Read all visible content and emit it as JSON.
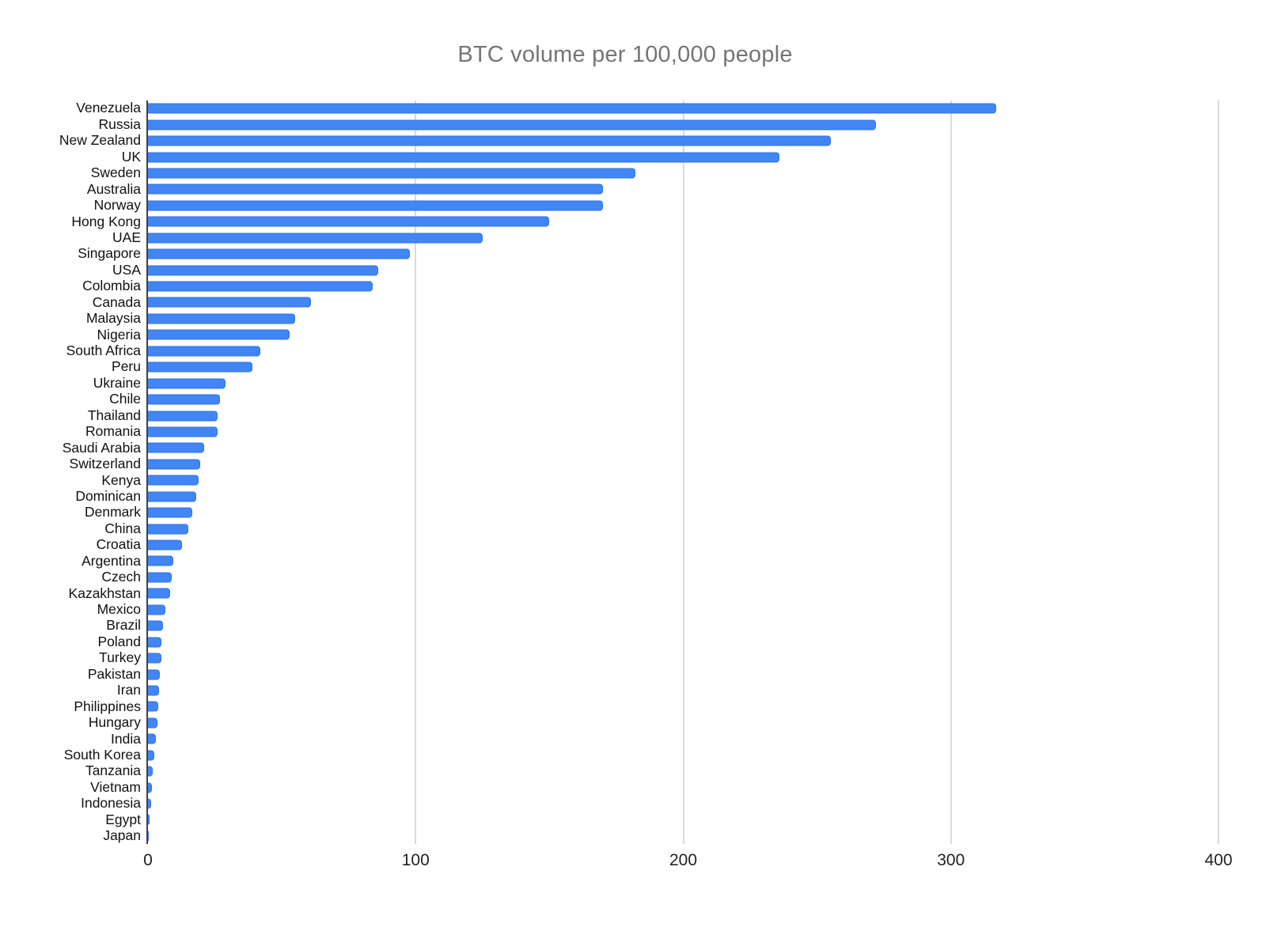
{
  "colors": {
    "bar": "#4285f4",
    "bar_border": "#3272e8",
    "title": "#757575",
    "gridline": "#dadada",
    "axis": "#424242",
    "category_label": "#111111",
    "tick_label": "#222222",
    "background": "#ffffff"
  },
  "chart_data": {
    "type": "bar",
    "orientation": "horizontal",
    "title": "BTC volume per 100,000 people",
    "xlabel": "",
    "ylabel": "",
    "xlim": [
      0,
      400
    ],
    "x_ticks": [
      0,
      100,
      200,
      300,
      400
    ],
    "grid": true,
    "legend": "none",
    "categories": [
      "Venezuela",
      "Russia",
      "New Zealand",
      "UK",
      "Sweden",
      "Australia",
      "Norway",
      "Hong Kong",
      "UAE",
      "Singapore",
      "USA",
      "Colombia",
      "Canada",
      "Malaysia",
      "Nigeria",
      "South Africa",
      "Peru",
      "Ukraine",
      "Chile",
      "Thailand",
      "Romania",
      "Saudi Arabia",
      "Switzerland",
      "Kenya",
      "Dominican",
      "Denmark",
      "China",
      "Croatia",
      "Argentina",
      "Czech",
      "Kazakhstan",
      "Mexico",
      "Brazil",
      "Poland",
      "Turkey",
      "Pakistan",
      "Iran",
      "Philippines",
      "Hungary",
      "India",
      "South Korea",
      "Tanzania",
      "Vietnam",
      "Indonesia",
      "Egypt",
      "Japan"
    ],
    "values": [
      317,
      272,
      255,
      236,
      182,
      170,
      170,
      150,
      125,
      98,
      86,
      84,
      61,
      55,
      53,
      42,
      39,
      29,
      27,
      26,
      26,
      21,
      19.5,
      19,
      18,
      16.5,
      15,
      12.7,
      9.5,
      9,
      8.3,
      6.5,
      5.6,
      5,
      5,
      4.4,
      4,
      3.8,
      3.4,
      2.9,
      2.3,
      1.8,
      1.5,
      1.1,
      0.7,
      0.4
    ]
  }
}
